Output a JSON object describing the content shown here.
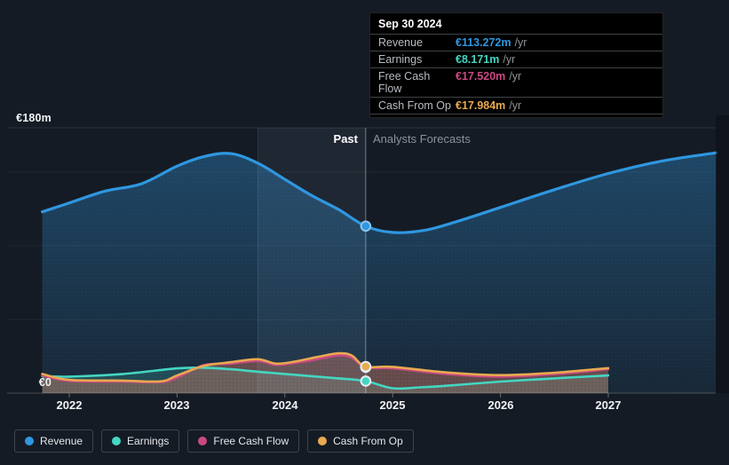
{
  "colors": {
    "background": "#151b24",
    "revenue": "#2f97e0",
    "earnings": "#44d6c2",
    "free_cash_flow": "#cb4884",
    "cash_from_op": "#e8a94f",
    "tooltip_background": "#000000",
    "muted_text": "#8b929b"
  },
  "tooltip": {
    "date": "Sep 30 2024",
    "rows": [
      {
        "label": "Revenue",
        "value": "€113.272m",
        "unit": "/yr",
        "series": "revenue"
      },
      {
        "label": "Earnings",
        "value": "€8.171m",
        "unit": "/yr",
        "series": "earnings"
      },
      {
        "label": "Free Cash Flow",
        "value": "€17.520m",
        "unit": "/yr",
        "series": "free_cash_flow"
      },
      {
        "label": "Cash From Op",
        "value": "€17.984m",
        "unit": "/yr",
        "series": "cash_from_op"
      }
    ]
  },
  "annotations": {
    "past": "Past",
    "forecast": "Analysts Forecasts"
  },
  "axis": {
    "y_top": "€180m",
    "y_zero": "€0",
    "x_ticks": [
      "2022",
      "2023",
      "2024",
      "2025",
      "2026",
      "2027"
    ]
  },
  "legend": [
    {
      "label": "Revenue",
      "series": "revenue"
    },
    {
      "label": "Earnings",
      "series": "earnings"
    },
    {
      "label": "Free Cash Flow",
      "series": "free_cash_flow"
    },
    {
      "label": "Cash From Op",
      "series": "cash_from_op"
    }
  ],
  "chart_data": {
    "type": "area",
    "unit": "€m",
    "x_domain": [
      2021.75,
      2028.0
    ],
    "ylim": [
      0,
      180
    ],
    "y_gridline_values": [
      0,
      50,
      100,
      150,
      180
    ],
    "highlight_band_x": [
      2023.75,
      2024.75
    ],
    "divider_x": 2024.75,
    "marker_x": 2024.75,
    "legend_position": "bottom",
    "series": [
      {
        "key": "revenue",
        "name": "Revenue",
        "x": [
          2021.75,
          2022,
          2022.33,
          2022.67,
          2023,
          2023.25,
          2023.5,
          2023.75,
          2024,
          2024.25,
          2024.5,
          2024.75,
          2025,
          2025.3,
          2025.6,
          2026,
          2026.5,
          2027,
          2027.5,
          2028
        ],
        "values": [
          123,
          129,
          137,
          142,
          154,
          160.5,
          162.5,
          156,
          145,
          134,
          124.5,
          113.272,
          109,
          110.5,
          116.5,
          126,
          138,
          149,
          157.5,
          163
        ],
        "marker_value": 113.272
      },
      {
        "key": "earnings",
        "name": "Earnings",
        "x": [
          2021.75,
          2022,
          2022.5,
          2023,
          2023.25,
          2023.5,
          2023.75,
          2024,
          2024.25,
          2024.5,
          2024.75,
          2025,
          2025.25,
          2025.5,
          2026,
          2026.5,
          2027
        ],
        "values": [
          11.5,
          11.2,
          13,
          16.8,
          17.2,
          16.2,
          14.5,
          13,
          11.5,
          10,
          8.171,
          3.3,
          3.9,
          5,
          7.8,
          10,
          12
        ],
        "marker_value": 8.171
      },
      {
        "key": "free_cash_flow",
        "name": "Free Cash Flow",
        "x": [
          2021.75,
          2022,
          2022.5,
          2022.85,
          2023,
          2023.25,
          2023.5,
          2023.75,
          2023.92,
          2024.1,
          2024.3,
          2024.5,
          2024.62,
          2024.75,
          2025,
          2025.5,
          2026,
          2026.5,
          2027
        ],
        "values": [
          12,
          8.3,
          7.8,
          7.5,
          10.5,
          19,
          20,
          21.8,
          19.2,
          20.5,
          23,
          25.5,
          24,
          17.52,
          16.9,
          13,
          11.2,
          12.9,
          16.2
        ],
        "marker_value": 17.52
      },
      {
        "key": "cash_from_op",
        "name": "Cash From Op",
        "x": [
          2021.75,
          2022,
          2022.5,
          2022.85,
          2023,
          2023.25,
          2023.5,
          2023.75,
          2023.92,
          2024.1,
          2024.3,
          2024.5,
          2024.62,
          2024.75,
          2025,
          2025.5,
          2026,
          2026.5,
          2027
        ],
        "values": [
          13,
          9,
          8.5,
          8,
          12,
          18.5,
          21,
          23,
          20,
          21.5,
          24.5,
          27,
          25.5,
          17.984,
          17.8,
          14,
          12.2,
          13.8,
          17
        ],
        "marker_value": 17.984
      }
    ]
  }
}
